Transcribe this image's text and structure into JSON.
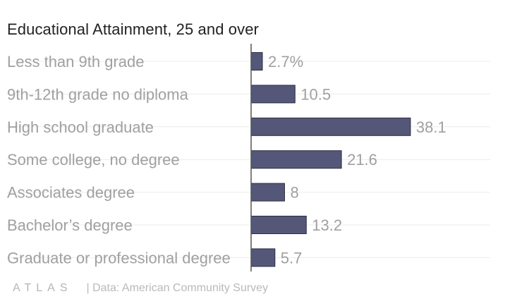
{
  "chart_data": {
    "type": "bar",
    "orientation": "horizontal",
    "title": "Educational Attainment, 25 and over",
    "categories": [
      "Less than 9th grade",
      "9th-12th grade no diploma",
      "High school graduate",
      "Some college, no degree",
      "Associates degree",
      "Bachelor’s degree",
      "Graduate or professional degree"
    ],
    "values": [
      2.7,
      10.5,
      38.1,
      21.6,
      8,
      13.2,
      5.7
    ],
    "value_labels": [
      "2.7%",
      "10.5",
      "38.1",
      "21.6",
      "8",
      "13.2",
      "5.7"
    ],
    "xlim": [
      0,
      40
    ],
    "grid": true,
    "colors": {
      "bar": "#545777",
      "bar_outline": "#2c2d44",
      "category_label": "#a0a0a0",
      "value_label": "#a0a0a0",
      "gridline": "#ececec",
      "axis": "#555555"
    }
  },
  "footer": {
    "logo": "ATLAS",
    "source": "| Data: American Community Survey"
  }
}
